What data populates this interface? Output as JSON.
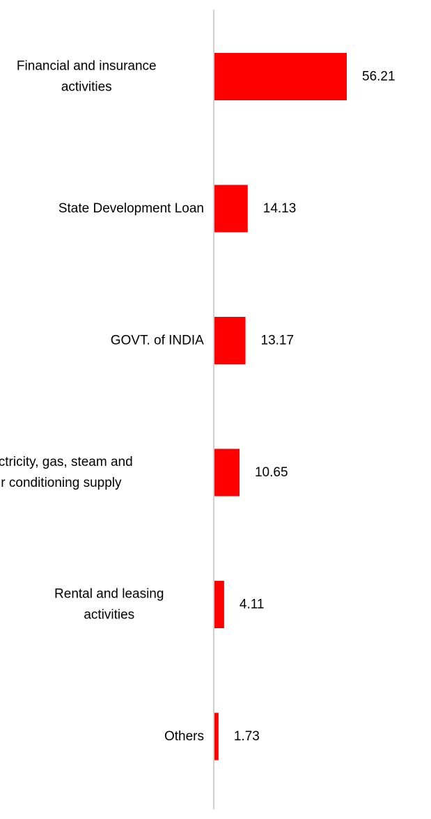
{
  "chart_data": {
    "type": "bar",
    "orientation": "horizontal",
    "categories": [
      [
        "Financial and insurance",
        "activities"
      ],
      [
        "State Development Loan"
      ],
      [
        "GOVT. of INDIA"
      ],
      [
        "Electricity, gas, steam and",
        "air conditioning supply"
      ],
      [
        "Rental and leasing",
        "activities"
      ],
      [
        "Others"
      ]
    ],
    "values": [
      56.21,
      14.13,
      13.17,
      10.65,
      4.11,
      1.73
    ],
    "value_labels": [
      "56.21",
      "14.13",
      "13.17",
      "10.65",
      "4.11",
      "1.73"
    ],
    "title": "",
    "xlabel": "",
    "ylabel": "",
    "xlim": [
      0,
      56.21
    ],
    "grid": false,
    "legend": "none",
    "bar_color": "#ff0000",
    "axis_color": "#d0d0d0"
  }
}
